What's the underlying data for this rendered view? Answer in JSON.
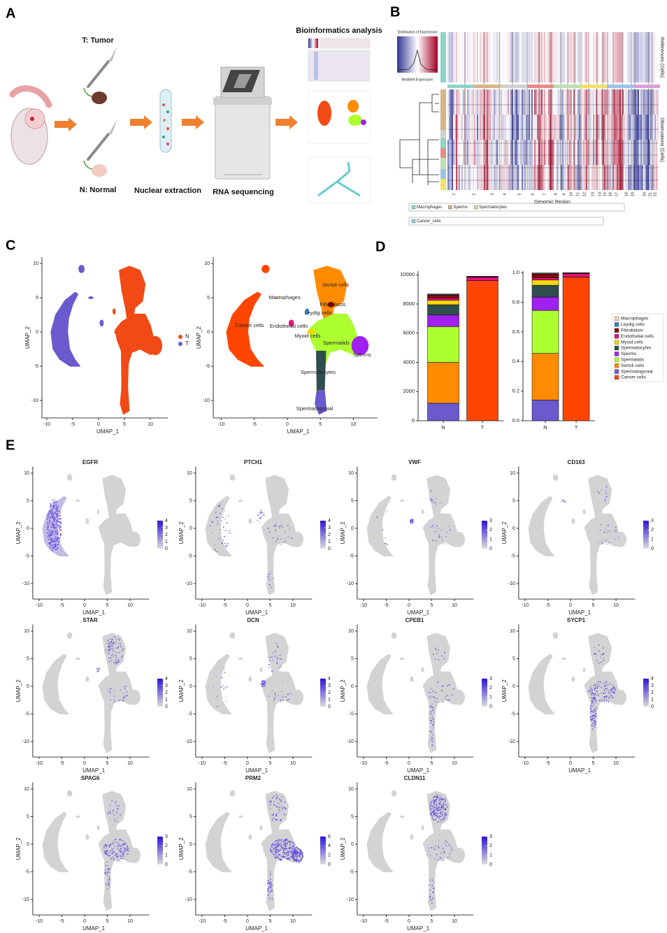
{
  "panel_labels": [
    "A",
    "B",
    "C",
    "D",
    "E"
  ],
  "panel_a": {
    "tumor": "T: Tumor",
    "normal": "N: Normal",
    "steps": [
      "Nuclear extraction",
      "RNA sequencing",
      "Bioinformatics analysis"
    ]
  },
  "panel_b": {
    "colorbar_title": "Distribution of Expression",
    "colorbar_xlabel": "Modified Expression",
    "references_label": "References (Cells)",
    "observations_label": "Observations (Cells)",
    "xlabel": "Genomic Region",
    "chromosomes": [
      "1",
      "2",
      "3",
      "4",
      "5",
      "6",
      "7",
      "8",
      "9",
      "10",
      "11",
      "12",
      "13",
      "14",
      "15",
      "16",
      "17",
      "18",
      "19",
      "20",
      "21",
      "22"
    ],
    "legend_rows": [
      [
        "Macrophages",
        "Sperms",
        "Spermatocytes"
      ],
      [
        "Cancer_cells"
      ]
    ]
  },
  "umap_axes": {
    "xlabel": "UMAP_1",
    "ylabel": "UMAP_2",
    "xticks": [
      -10,
      -5,
      0,
      5,
      10
    ],
    "yticks": [
      -10,
      -5,
      0,
      5,
      10
    ]
  },
  "panel_c": {
    "groups": [
      {
        "name": "N",
        "color": "#f24a16"
      },
      {
        "name": "T",
        "color": "#6a5acd"
      }
    ]
  },
  "chart_data": [
    {
      "type": "bar",
      "stacked": true,
      "legend": "right",
      "categories": [
        "N",
        "T"
      ],
      "ylim": [
        0,
        10250
      ],
      "yticks": [
        0,
        2000,
        4000,
        6000,
        8000,
        10000
      ],
      "series": [
        {
          "name": "Macrophages",
          "color": "#f5d6b0",
          "values": [
            50,
            30
          ]
        },
        {
          "name": "Leydig cells",
          "color": "#3a7fc1",
          "values": [
            50,
            0
          ]
        },
        {
          "name": "Fibroblasts",
          "color": "#8b0000",
          "values": [
            200,
            40
          ]
        },
        {
          "name": "Endothelial cells",
          "color": "#e3127f",
          "values": [
            150,
            230
          ]
        },
        {
          "name": "Myoid cells",
          "color": "#f5d800",
          "values": [
            300,
            0
          ]
        },
        {
          "name": "Spermatocytes",
          "color": "#2f4f4f",
          "values": [
            700,
            0
          ]
        },
        {
          "name": "Sperms",
          "color": "#a020f0",
          "values": [
            800,
            0
          ]
        },
        {
          "name": "Spermatids",
          "color": "#adff2f",
          "values": [
            2450,
            0
          ]
        },
        {
          "name": "Sertoli cells",
          "color": "#ff8c00",
          "values": [
            2800,
            0
          ]
        },
        {
          "name": "Spermatogonial",
          "color": "#6a5acd",
          "values": [
            1200,
            0
          ]
        },
        {
          "name": "Cancer cells",
          "color": "#ff4500",
          "values": [
            0,
            9600
          ]
        }
      ]
    },
    {
      "type": "bar",
      "stacked": true,
      "categories": [
        "N",
        "T"
      ],
      "ylim": [
        0,
        1.01
      ],
      "yticks": [
        {
          "value": 0,
          "label": "0.0"
        },
        0.2,
        0.4,
        0.6,
        0.8,
        {
          "value": 1,
          "label": "1.0"
        }
      ],
      "series": [
        {
          "color": "#f5d6b0",
          "values": [
            0.005,
            0.003
          ]
        },
        {
          "color": "#3a7fc1",
          "values": [
            0.005,
            0
          ]
        },
        {
          "color": "#8b0000",
          "values": [
            0.025,
            0.004
          ]
        },
        {
          "color": "#e3127f",
          "values": [
            0.015,
            0.023
          ]
        },
        {
          "color": "#f5d800",
          "values": [
            0.035,
            0
          ]
        },
        {
          "color": "#2f4f4f",
          "values": [
            0.08,
            0
          ]
        },
        {
          "color": "#a020f0",
          "values": [
            0.09,
            0
          ]
        },
        {
          "color": "#adff2f",
          "values": [
            0.29,
            0
          ]
        },
        {
          "color": "#ff8c00",
          "values": [
            0.315,
            0
          ]
        },
        {
          "color": "#6a5acd",
          "values": [
            0.14,
            0
          ]
        },
        {
          "color": "#ff4500",
          "values": [
            0,
            0.97
          ]
        }
      ]
    }
  ],
  "panel_e": {
    "features": [
      {
        "gene": "EGFR",
        "scale_ticks": [
          0,
          1,
          2,
          3,
          4
        ]
      },
      {
        "gene": "PTCH1",
        "scale_ticks": [
          0,
          1,
          2,
          3,
          4
        ]
      },
      {
        "gene": "VWF",
        "scale_ticks": [
          0,
          1,
          2,
          3
        ]
      },
      {
        "gene": "CD163",
        "scale_ticks": [
          0,
          1,
          2,
          3
        ]
      },
      {
        "gene": "STAR",
        "scale_ticks": [
          0,
          1,
          2,
          3,
          4
        ]
      },
      {
        "gene": "DCN",
        "scale_ticks": [
          0,
          1,
          2,
          3,
          4
        ]
      },
      {
        "gene": "CPEB1",
        "scale_ticks": [
          0,
          1,
          2,
          3
        ]
      },
      {
        "gene": "SYCP1",
        "scale_ticks": [
          0,
          1,
          2,
          3,
          4
        ]
      },
      {
        "gene": "SPAG6",
        "scale_ticks": [
          0,
          1,
          2,
          3
        ]
      },
      {
        "gene": "PRM2",
        "scale_ticks": [
          0,
          2,
          4,
          6
        ]
      },
      {
        "gene": "CLDN11",
        "scale_ticks": [
          0,
          1,
          2,
          3
        ]
      }
    ]
  }
}
